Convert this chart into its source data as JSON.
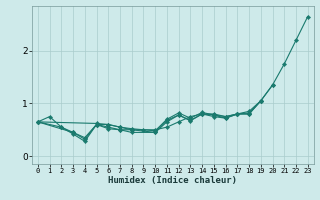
{
  "xlabel": "Humidex (Indice chaleur)",
  "ylabel": "",
  "bg_color": "#ceeaea",
  "line_color": "#1a7a6e",
  "grid_color": "#aacccc",
  "ylim": [
    -0.15,
    2.85
  ],
  "xlim": [
    -0.5,
    23.5
  ],
  "yticks": [
    0,
    1,
    2
  ],
  "xticks": [
    0,
    1,
    2,
    3,
    4,
    5,
    6,
    7,
    8,
    9,
    10,
    11,
    12,
    13,
    14,
    15,
    16,
    17,
    18,
    19,
    20,
    21,
    22,
    23
  ],
  "series": [
    [
      0.65,
      0.75,
      0.55,
      0.45,
      0.35,
      0.6,
      0.6,
      0.55,
      0.5,
      0.5,
      0.5,
      0.55,
      0.65,
      0.75,
      0.8,
      0.8,
      0.75,
      0.8,
      0.85,
      1.05,
      1.35,
      1.75,
      2.2,
      2.65
    ],
    [
      0.65,
      null,
      null,
      null,
      null,
      0.62,
      0.6,
      0.55,
      0.52,
      null,
      0.48,
      0.7,
      0.82,
      0.72,
      0.83,
      0.78,
      0.75,
      0.8,
      0.82,
      1.05,
      1.35,
      null,
      null,
      null
    ],
    [
      0.65,
      null,
      0.55,
      0.42,
      0.28,
      0.6,
      0.55,
      0.5,
      0.45,
      null,
      0.45,
      0.65,
      0.78,
      0.67,
      0.8,
      0.78,
      0.72,
      0.8,
      0.8,
      1.05,
      null,
      null,
      null,
      null
    ],
    [
      0.65,
      null,
      null,
      0.45,
      0.32,
      0.6,
      0.52,
      0.5,
      0.5,
      null,
      0.45,
      0.68,
      0.78,
      0.68,
      0.8,
      0.75,
      0.72,
      0.8,
      0.8,
      1.05,
      null,
      null,
      null,
      null
    ]
  ]
}
